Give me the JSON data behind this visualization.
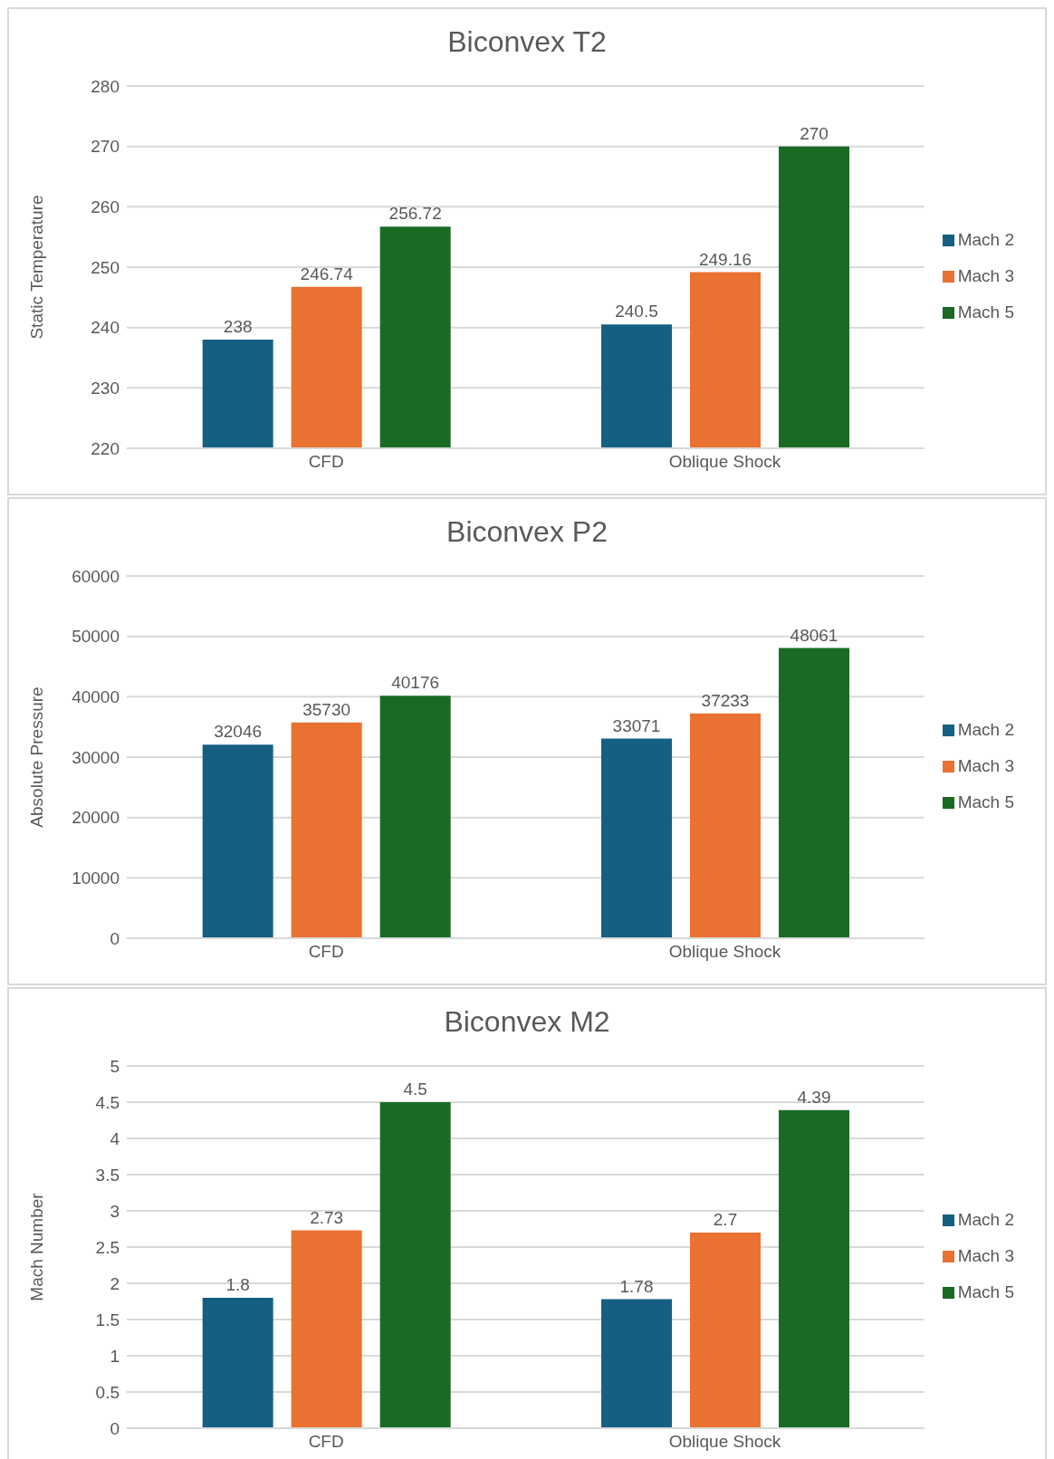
{
  "chart_data": [
    {
      "type": "bar",
      "title": "Biconvex T2",
      "ylabel": "Static Temperature",
      "categories": [
        "CFD",
        "Oblique Shock"
      ],
      "series": [
        {
          "name": "Mach 2",
          "color": "#156082",
          "values": [
            238,
            240.5
          ]
        },
        {
          "name": "Mach 3",
          "color": "#e97132",
          "values": [
            246.74,
            249.16
          ]
        },
        {
          "name": "Mach 5",
          "color": "#196b24",
          "values": [
            256.72,
            270
          ]
        }
      ],
      "ylim": [
        220,
        280
      ],
      "yticks": [
        220,
        230,
        240,
        250,
        260,
        270,
        280
      ],
      "grid": "y",
      "legend": "right",
      "data_labels": true
    },
    {
      "type": "bar",
      "title": "Biconvex P2",
      "ylabel": "Absolute Pressure",
      "categories": [
        "CFD",
        "Oblique Shock"
      ],
      "series": [
        {
          "name": "Mach 2",
          "color": "#156082",
          "values": [
            32046,
            33071
          ]
        },
        {
          "name": "Mach 3",
          "color": "#e97132",
          "values": [
            35730,
            37233
          ]
        },
        {
          "name": "Mach 5",
          "color": "#196b24",
          "values": [
            40176,
            48061
          ]
        }
      ],
      "ylim": [
        0,
        60000
      ],
      "yticks": [
        0,
        10000,
        20000,
        30000,
        40000,
        50000,
        60000
      ],
      "grid": "y",
      "legend": "right",
      "data_labels": true
    },
    {
      "type": "bar",
      "title": "Biconvex M2",
      "ylabel": "Mach Number",
      "categories": [
        "CFD",
        "Oblique Shock"
      ],
      "series": [
        {
          "name": "Mach 2",
          "color": "#156082",
          "values": [
            1.8,
            1.78
          ]
        },
        {
          "name": "Mach 3",
          "color": "#e97132",
          "values": [
            2.73,
            2.7
          ]
        },
        {
          "name": "Mach 5",
          "color": "#196b24",
          "values": [
            4.5,
            4.39
          ]
        }
      ],
      "ylim": [
        0,
        5
      ],
      "yticks": [
        0,
        0.5,
        1,
        1.5,
        2,
        2.5,
        3,
        3.5,
        4,
        4.5,
        5
      ],
      "grid": "y",
      "legend": "right",
      "data_labels": true
    }
  ]
}
